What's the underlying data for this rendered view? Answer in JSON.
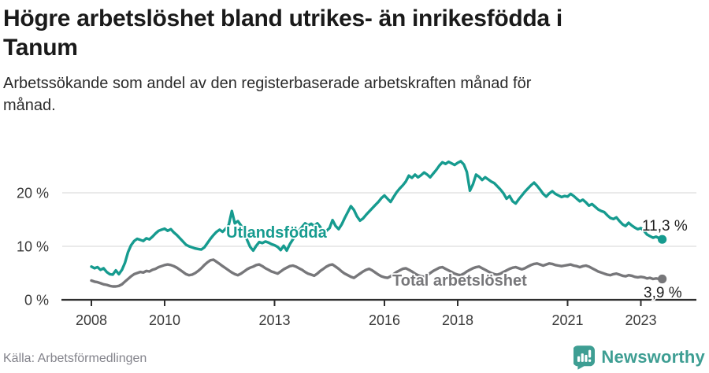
{
  "header": {
    "title_lines": [
      "Högre arbetslöshet bland utrikes- än inrikesfödda i",
      "Tanum"
    ],
    "subtitle_lines": [
      "Arbetssökande som andel av den registerbaserade arbetskraften månad för",
      "månad."
    ]
  },
  "chart_data": {
    "type": "line",
    "x_unit": "month",
    "x_start": "2008-01",
    "x_end": "2023-08",
    "ylim": [
      0,
      27
    ],
    "grid": "horizontal",
    "legend_position": "inline-labels",
    "yticks": [
      {
        "value": 0,
        "label": "0 %"
      },
      {
        "value": 10,
        "label": "10 %"
      },
      {
        "value": 20,
        "label": "20 %"
      }
    ],
    "xticks": [
      {
        "year": 2008,
        "label": "2008"
      },
      {
        "year": 2010,
        "label": "2010"
      },
      {
        "year": 2013,
        "label": "2013"
      },
      {
        "year": 2016,
        "label": "2016"
      },
      {
        "year": 2018,
        "label": "2018"
      },
      {
        "year": 2021,
        "label": "2021"
      },
      {
        "year": 2023,
        "label": "2023"
      }
    ],
    "series": [
      {
        "id": "utlandsfodda",
        "name": "Utlandsfödda",
        "color": "#169b8f",
        "end_value": 11.3,
        "end_label": "11,3 %",
        "values": [
          6.2,
          5.9,
          6.1,
          5.6,
          5.9,
          5.2,
          4.8,
          4.7,
          5.5,
          4.8,
          5.6,
          6.9,
          8.9,
          10.2,
          11.0,
          11.4,
          11.2,
          11.0,
          11.5,
          11.3,
          11.8,
          12.4,
          12.9,
          13.1,
          13.3,
          12.9,
          13.2,
          12.6,
          12.1,
          11.5,
          10.9,
          10.3,
          10.0,
          9.8,
          9.6,
          9.5,
          9.4,
          9.8,
          10.6,
          11.4,
          12.1,
          12.7,
          13.1,
          12.7,
          13.3,
          14.0,
          16.6,
          14.3,
          14.7,
          13.9,
          12.6,
          11.2,
          9.9,
          9.2,
          10.1,
          10.8,
          10.6,
          10.9,
          10.7,
          10.4,
          10.2,
          9.9,
          9.3,
          10.1,
          9.2,
          10.4,
          11.3,
          12.1,
          12.9,
          13.6,
          14.3,
          13.9,
          14.2,
          13.8,
          14.3,
          13.6,
          12.5,
          12.9,
          13.4,
          14.9,
          13.8,
          13.2,
          14.1,
          15.3,
          16.4,
          17.5,
          16.8,
          15.6,
          14.8,
          15.2,
          15.9,
          16.5,
          17.1,
          17.7,
          18.3,
          19.0,
          19.5,
          18.9,
          18.3,
          19.2,
          20.1,
          20.8,
          21.4,
          22.1,
          23.2,
          22.8,
          23.4,
          22.9,
          23.3,
          23.8,
          23.4,
          22.9,
          23.6,
          24.3,
          25.1,
          25.7,
          25.4,
          25.8,
          25.5,
          25.2,
          25.6,
          25.9,
          25.3,
          23.9,
          20.4,
          21.6,
          23.4,
          23.0,
          22.4,
          22.9,
          22.5,
          22.1,
          21.8,
          21.2,
          20.6,
          19.9,
          18.9,
          19.4,
          18.4,
          18.0,
          18.8,
          19.5,
          20.2,
          20.8,
          21.4,
          21.9,
          21.3,
          20.6,
          19.8,
          19.3,
          19.9,
          20.3,
          19.8,
          19.5,
          19.2,
          19.4,
          19.3,
          19.8,
          19.4,
          18.9,
          18.4,
          18.7,
          18.2,
          17.6,
          17.9,
          17.4,
          16.9,
          16.6,
          16.4,
          15.8,
          15.3,
          15.1,
          15.4,
          14.7,
          14.1,
          13.8,
          14.4,
          13.9,
          13.5,
          13.2,
          13.4,
          12.9,
          12.2,
          11.9,
          11.6,
          11.8,
          11.5,
          11.3
        ]
      },
      {
        "id": "total",
        "name": "Total arbetslöshet",
        "color": "#77777a",
        "end_value": 3.9,
        "end_label": "3,9 %",
        "values": [
          3.6,
          3.4,
          3.3,
          3.1,
          2.9,
          2.8,
          2.6,
          2.5,
          2.5,
          2.6,
          2.9,
          3.4,
          3.9,
          4.4,
          4.8,
          5.0,
          5.2,
          5.1,
          5.4,
          5.3,
          5.6,
          5.8,
          6.1,
          6.3,
          6.5,
          6.6,
          6.5,
          6.3,
          6.0,
          5.6,
          5.2,
          4.8,
          4.6,
          4.7,
          5.0,
          5.4,
          5.9,
          6.5,
          7.0,
          7.4,
          7.5,
          7.1,
          6.7,
          6.3,
          5.9,
          5.5,
          5.1,
          4.8,
          4.6,
          4.9,
          5.3,
          5.7,
          6.0,
          6.2,
          6.5,
          6.6,
          6.3,
          5.9,
          5.6,
          5.3,
          5.1,
          4.9,
          5.3,
          5.7,
          6.0,
          6.3,
          6.4,
          6.2,
          5.9,
          5.6,
          5.2,
          4.9,
          4.7,
          4.5,
          4.9,
          5.4,
          5.8,
          6.2,
          6.5,
          6.6,
          6.2,
          5.8,
          5.3,
          4.9,
          4.6,
          4.3,
          4.1,
          4.5,
          4.9,
          5.3,
          5.6,
          5.8,
          5.5,
          5.1,
          4.7,
          4.4,
          4.2,
          4.1,
          4.4,
          4.8,
          5.2,
          5.5,
          5.8,
          5.9,
          5.6,
          5.3,
          4.9,
          4.6,
          4.4,
          4.3,
          4.6,
          5.0,
          5.4,
          5.7,
          6.0,
          6.1,
          5.8,
          5.5,
          5.2,
          4.9,
          4.7,
          4.6,
          4.9,
          5.3,
          5.6,
          5.9,
          6.1,
          6.2,
          5.9,
          5.6,
          5.3,
          5.0,
          4.8,
          4.7,
          4.9,
          5.2,
          5.5,
          5.8,
          6.0,
          6.1,
          5.9,
          5.7,
          5.9,
          6.2,
          6.5,
          6.7,
          6.8,
          6.6,
          6.4,
          6.6,
          6.8,
          6.7,
          6.5,
          6.4,
          6.3,
          6.4,
          6.5,
          6.6,
          6.4,
          6.3,
          6.1,
          6.3,
          6.4,
          6.2,
          5.9,
          5.6,
          5.3,
          5.1,
          4.9,
          4.7,
          4.6,
          4.8,
          4.9,
          4.7,
          4.5,
          4.4,
          4.6,
          4.5,
          4.3,
          4.2,
          4.3,
          4.2,
          4.0,
          4.1,
          3.9,
          4.0,
          3.9,
          3.9
        ]
      }
    ]
  },
  "footer": {
    "source": "Källa: Arbetsförmedlingen",
    "brand": "Newsworthy",
    "brand_color": "#3e9e93"
  }
}
